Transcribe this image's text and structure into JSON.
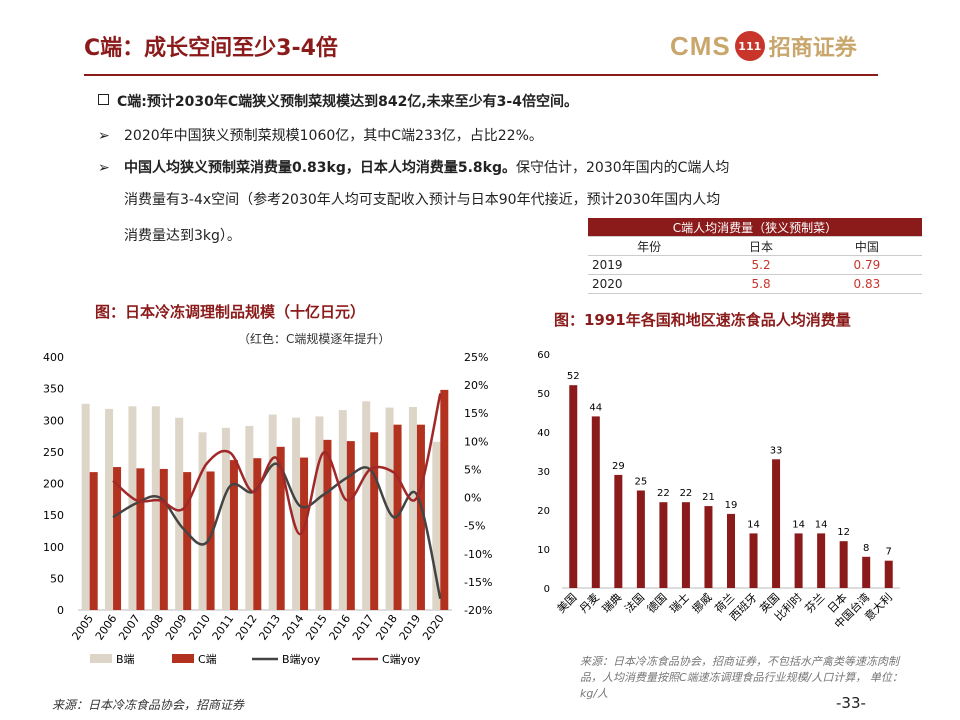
{
  "title": "C端：成长空间至少3-4倍",
  "logo": {
    "cms": "CMS",
    "badge": "111",
    "name": "招商证券"
  },
  "bullets": {
    "b1": "C端:预计2030年C端狭义预制菜规模达到842亿,未来至少有3-4倍空间。",
    "b2": "2020年中国狭义预制菜规模1060亿，其中C端233亿，占比22%。",
    "b3_bold": "中国人均狭义预制菜消费量0.83kg，日本人均消费量5.8kg。",
    "b3_rest": "保守估计，2030年国内的C端人均",
    "b3_line2": "消费量有3-4x空间（参考2030年人均可支配收入预计与日本90年代接近，预计2030年国内人均",
    "b3_line3": "消费量达到3kg）。"
  },
  "consumption_table": {
    "header": "C端人均消费量（狭义预制菜）",
    "columns": [
      "年份",
      "日本",
      "中国"
    ],
    "rows": [
      [
        "2019",
        "5.2",
        "0.79"
      ],
      [
        "2020",
        "5.8",
        "0.83"
      ]
    ]
  },
  "chart1_caption": "图：日本冷冻调理制品规模（十亿日元）",
  "chart1_subcaption": "（红色：C端规模逐年提升）",
  "chart2_caption": "图：1991年各国和地区速冻食品人均消费量",
  "source_left": "来源：日本冷冻食品协会，招商证券",
  "source_right": "来源：日本冷冻食品协会，招商证券，不包括水产禽类等速冻肉制品，人均消费量按照C端速冻调理食品行业规模/人口计算， 单位：kg/人",
  "page_number": "-33-",
  "colors": {
    "brand": "#8b1a1a",
    "b_bar": "#ddd5c8",
    "c_bar": "#b3321f",
    "b_line": "#444444",
    "c_line": "#a02828"
  },
  "chart_data": [
    {
      "type": "bar",
      "categories": [
        "2005",
        "2006",
        "2007",
        "2008",
        "2009",
        "2010",
        "2011",
        "2012",
        "2013",
        "2014",
        "2015",
        "2016",
        "2017",
        "2018",
        "2019",
        "2020"
      ],
      "series": [
        {
          "name": "B端",
          "type": "bar",
          "values": [
            326,
            318,
            322,
            322,
            304,
            281,
            288,
            291,
            309,
            304,
            306,
            316,
            330,
            320,
            321,
            266
          ]
        },
        {
          "name": "C端",
          "type": "bar",
          "values": [
            218,
            226,
            224,
            223,
            218,
            219,
            237,
            240,
            258,
            241,
            269,
            267,
            281,
            293,
            293,
            348
          ]
        },
        {
          "name": "B端yoy",
          "type": "line",
          "axis": "right",
          "values": [
            null,
            -3.5,
            -1.0,
            0.0,
            -5.5,
            -8.0,
            2.0,
            1.0,
            6.0,
            -1.5,
            0.5,
            3.5,
            5.0,
            -3.5,
            0.5,
            -18.0
          ]
        },
        {
          "name": "C端yoy",
          "type": "line",
          "axis": "right",
          "values": [
            null,
            3.0,
            -0.5,
            -0.5,
            -2.0,
            6.0,
            8.0,
            1.0,
            7.0,
            -6.5,
            8.0,
            -0.5,
            5.0,
            4.5,
            0.0,
            18.5
          ]
        }
      ],
      "y_left": {
        "ticks": [
          "0",
          "50",
          "100",
          "150",
          "200",
          "250",
          "300",
          "350",
          "400"
        ],
        "ylim": [
          0,
          400
        ]
      },
      "y_right": {
        "ticks": [
          "-20%",
          "-15%",
          "-10%",
          "-5%",
          "0%",
          "5%",
          "10%",
          "15%",
          "20%",
          "25%"
        ],
        "ylim": [
          -20,
          25
        ]
      },
      "legend": [
        "B端",
        "C端",
        "B端yoy",
        "C端yoy"
      ],
      "legend_position": "bottom"
    },
    {
      "type": "bar",
      "categories": [
        "美国",
        "丹麦",
        "瑞典",
        "法国",
        "德国",
        "瑞士",
        "挪威",
        "荷兰",
        "西班牙",
        "英国",
        "比利时",
        "芬兰",
        "日本",
        "中国台湾",
        "意大利"
      ],
      "values": [
        52,
        44,
        29,
        25,
        22,
        22,
        21,
        19,
        14,
        33,
        14,
        14,
        12,
        8,
        7
      ],
      "ylim": [
        0,
        60
      ],
      "y_ticks": [
        "0",
        "10",
        "20",
        "30",
        "40",
        "50",
        "60"
      ]
    }
  ]
}
